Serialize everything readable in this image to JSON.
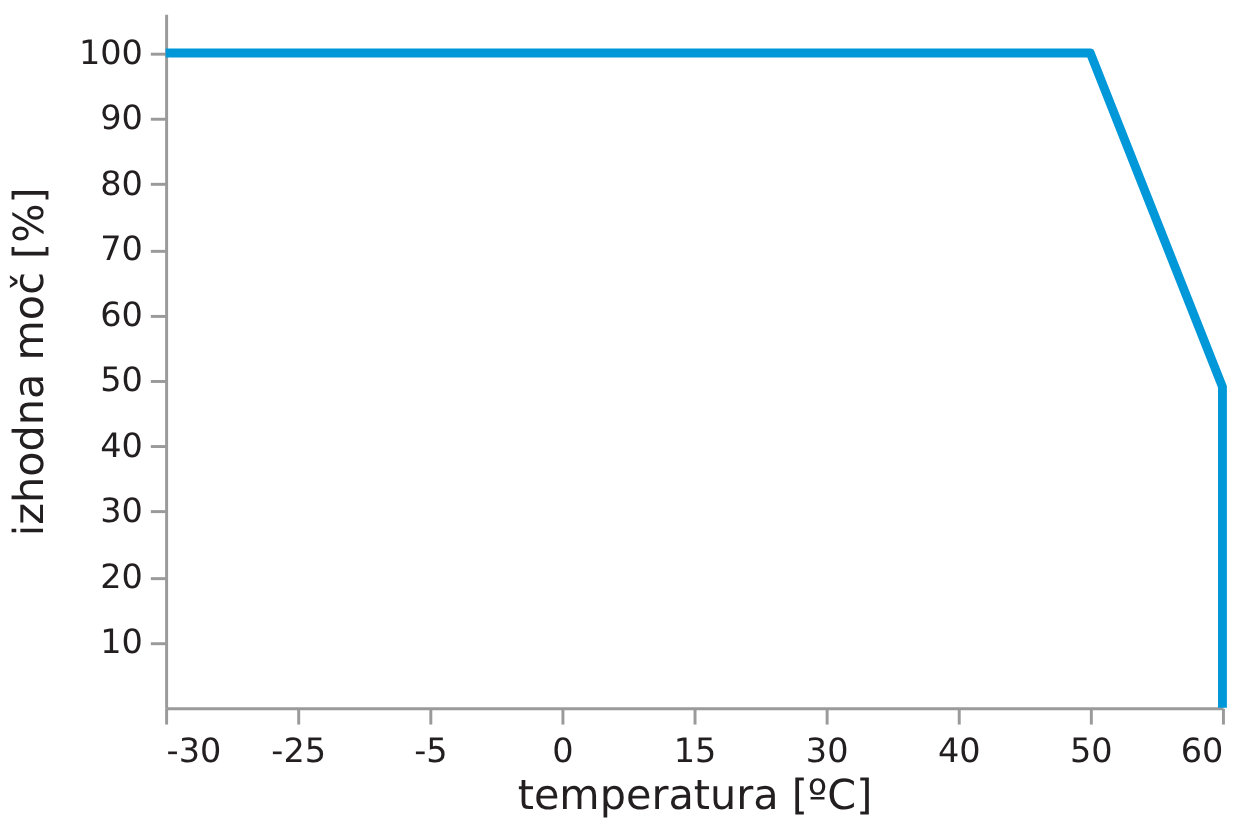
{
  "chart_data": {
    "type": "line",
    "xlabel": "temperatura [ºC]",
    "ylabel": "izhodna moč [%]",
    "categories": [
      "-30",
      "-25",
      "-5",
      "0",
      "15",
      "30",
      "40",
      "50",
      "60"
    ],
    "series": [
      {
        "color": "#0098d8",
        "x": [
          "-30",
          "50",
          "60",
          "60"
        ],
        "values": [
          100,
          100,
          49,
          0
        ]
      }
    ],
    "ylim": [
      0,
      106
    ],
    "yticks": [
      10,
      20,
      30,
      40,
      50,
      60,
      70,
      80,
      90,
      100
    ]
  }
}
